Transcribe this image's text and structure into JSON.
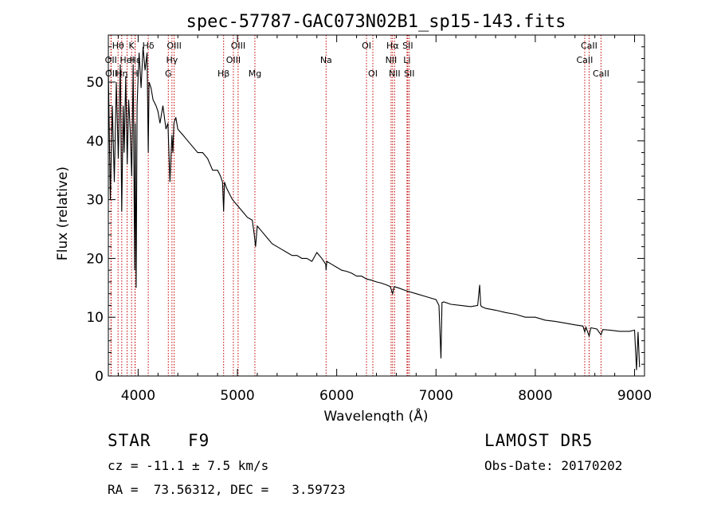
{
  "chart_data": {
    "type": "line",
    "title": "spec-57787-GAC073N02B1_sp15-143.fits",
    "xlabel": "Wavelength (Å)",
    "ylabel": "Flux (relative)",
    "xlim": [
      3700,
      9100
    ],
    "ylim": [
      0,
      58
    ],
    "x_ticks": [
      4000,
      5000,
      6000,
      7000,
      8000,
      9000
    ],
    "y_ticks": [
      0,
      10,
      20,
      30,
      40,
      50
    ],
    "grid": false,
    "series": [
      {
        "x": [
          3700,
          3720,
          3740,
          3760,
          3780,
          3800,
          3820,
          3835,
          3850,
          3860,
          3875,
          3890,
          3905,
          3920,
          3935,
          3950,
          3965,
          3970,
          3980,
          3990,
          4000,
          4010,
          4030,
          4050,
          4070,
          4090,
          4102,
          4110,
          4130,
          4150,
          4180,
          4200,
          4220,
          4250,
          4280,
          4300,
          4320,
          4340,
          4350,
          4360,
          4380,
          4400,
          4450,
          4500,
          4550,
          4600,
          4650,
          4700,
          4750,
          4800,
          4830,
          4850,
          4861,
          4870,
          4890,
          4920,
          4950,
          5000,
          5050,
          5100,
          5150,
          5170,
          5183,
          5200,
          5250,
          5300,
          5350,
          5400,
          5450,
          5500,
          5550,
          5600,
          5650,
          5700,
          5750,
          5800,
          5850,
          5890,
          5893,
          5900,
          5950,
          6000,
          6050,
          6100,
          6150,
          6200,
          6250,
          6300,
          6350,
          6400,
          6450,
          6500,
          6540,
          6563,
          6580,
          6620,
          6700,
          6800,
          6900,
          7000,
          7030,
          7050,
          7060,
          7080,
          7150,
          7250,
          7350,
          7420,
          7440,
          7450,
          7460,
          7500,
          7600,
          7700,
          7800,
          7900,
          8000,
          8100,
          8200,
          8300,
          8400,
          8480,
          8498,
          8510,
          8542,
          8560,
          8620,
          8662,
          8680,
          8750,
          8850,
          8950,
          9000,
          9020,
          9035,
          9050
        ],
        "y": [
          52,
          30,
          46,
          33,
          50,
          37,
          53,
          28,
          46,
          38,
          51,
          36,
          47,
          42,
          34,
          53,
          18,
          43,
          15,
          46,
          51,
          55,
          49,
          56,
          52,
          55,
          38,
          50,
          49,
          47,
          46,
          45,
          43,
          46,
          42,
          43,
          33,
          41,
          38,
          43,
          44,
          42,
          41,
          40,
          39,
          38,
          38,
          37,
          35,
          35,
          34,
          33,
          28,
          33,
          32,
          31,
          30,
          29,
          28,
          27,
          26.5,
          24,
          22,
          25.5,
          24.5,
          23.5,
          22.5,
          22,
          21.5,
          21,
          20.5,
          20.5,
          20,
          20,
          19.5,
          21,
          20,
          19,
          18,
          19.5,
          19,
          18.5,
          18,
          17.8,
          17.5,
          17,
          17,
          16.5,
          16.3,
          16,
          15.8,
          15.5,
          15.2,
          14,
          15.2,
          15,
          14.5,
          14,
          13.5,
          13,
          12,
          3,
          12.5,
          12.6,
          12.2,
          12,
          11.8,
          12,
          15.5,
          12,
          11.8,
          11.5,
          11.2,
          10.8,
          10.5,
          10,
          10,
          9.5,
          9.3,
          9,
          8.7,
          8.5,
          7.5,
          8.3,
          6.8,
          8.2,
          8,
          7,
          7.9,
          7.8,
          7.6,
          7.6,
          7.8,
          1,
          7.5,
          1.5
        ]
      }
    ],
    "lines": [
      {
        "x": 3726,
        "label": "OII",
        "row": 2
      },
      {
        "x": 3729,
        "label": "OII",
        "row": 3
      },
      {
        "x": 3798,
        "label": "Hθ",
        "row": 1
      },
      {
        "x": 3835,
        "label": "Hη",
        "row": 3
      },
      {
        "x": 3889,
        "label": "HeI",
        "row": 2
      },
      {
        "x": 3934,
        "label": "K",
        "row": 1
      },
      {
        "x": 3969,
        "label": "H",
        "row": 3
      },
      {
        "x": 3970,
        "label": "Hε",
        "row": 2
      },
      {
        "x": 4102,
        "label": "Hδ",
        "row": 1
      },
      {
        "x": 4304,
        "label": "G",
        "row": 3
      },
      {
        "x": 4341,
        "label": "Hγ",
        "row": 2
      },
      {
        "x": 4363,
        "label": "OIII",
        "row": 1
      },
      {
        "x": 4861,
        "label": "Hβ",
        "row": 3
      },
      {
        "x": 4959,
        "label": "OIII",
        "row": 2
      },
      {
        "x": 5007,
        "label": "OIII",
        "row": 1
      },
      {
        "x": 5176,
        "label": "Mg",
        "row": 3
      },
      {
        "x": 5893,
        "label": "Na",
        "row": 2
      },
      {
        "x": 6300,
        "label": "OI",
        "row": 1
      },
      {
        "x": 6364,
        "label": "OI",
        "row": 3
      },
      {
        "x": 6548,
        "label": "NII",
        "row": 2
      },
      {
        "x": 6563,
        "label": "Hα",
        "row": 1
      },
      {
        "x": 6583,
        "label": "NII",
        "row": 3
      },
      {
        "x": 6708,
        "label": "Li",
        "row": 2
      },
      {
        "x": 6716,
        "label": "SII",
        "row": 1
      },
      {
        "x": 6731,
        "label": "SII",
        "row": 3
      },
      {
        "x": 8498,
        "label": "CaII",
        "row": 2
      },
      {
        "x": 8542,
        "label": "CaII",
        "row": 1
      },
      {
        "x": 8662,
        "label": "CaII",
        "row": 3
      }
    ]
  },
  "footer": {
    "class_label": "STAR",
    "subclass": "F9",
    "survey": "LAMOST DR5",
    "velocity": "cz = -11.1 ± 7.5 km/s",
    "obs_date": "Obs-Date: 20170202",
    "coords": "RA =  73.56312, DEC =   3.59723"
  }
}
